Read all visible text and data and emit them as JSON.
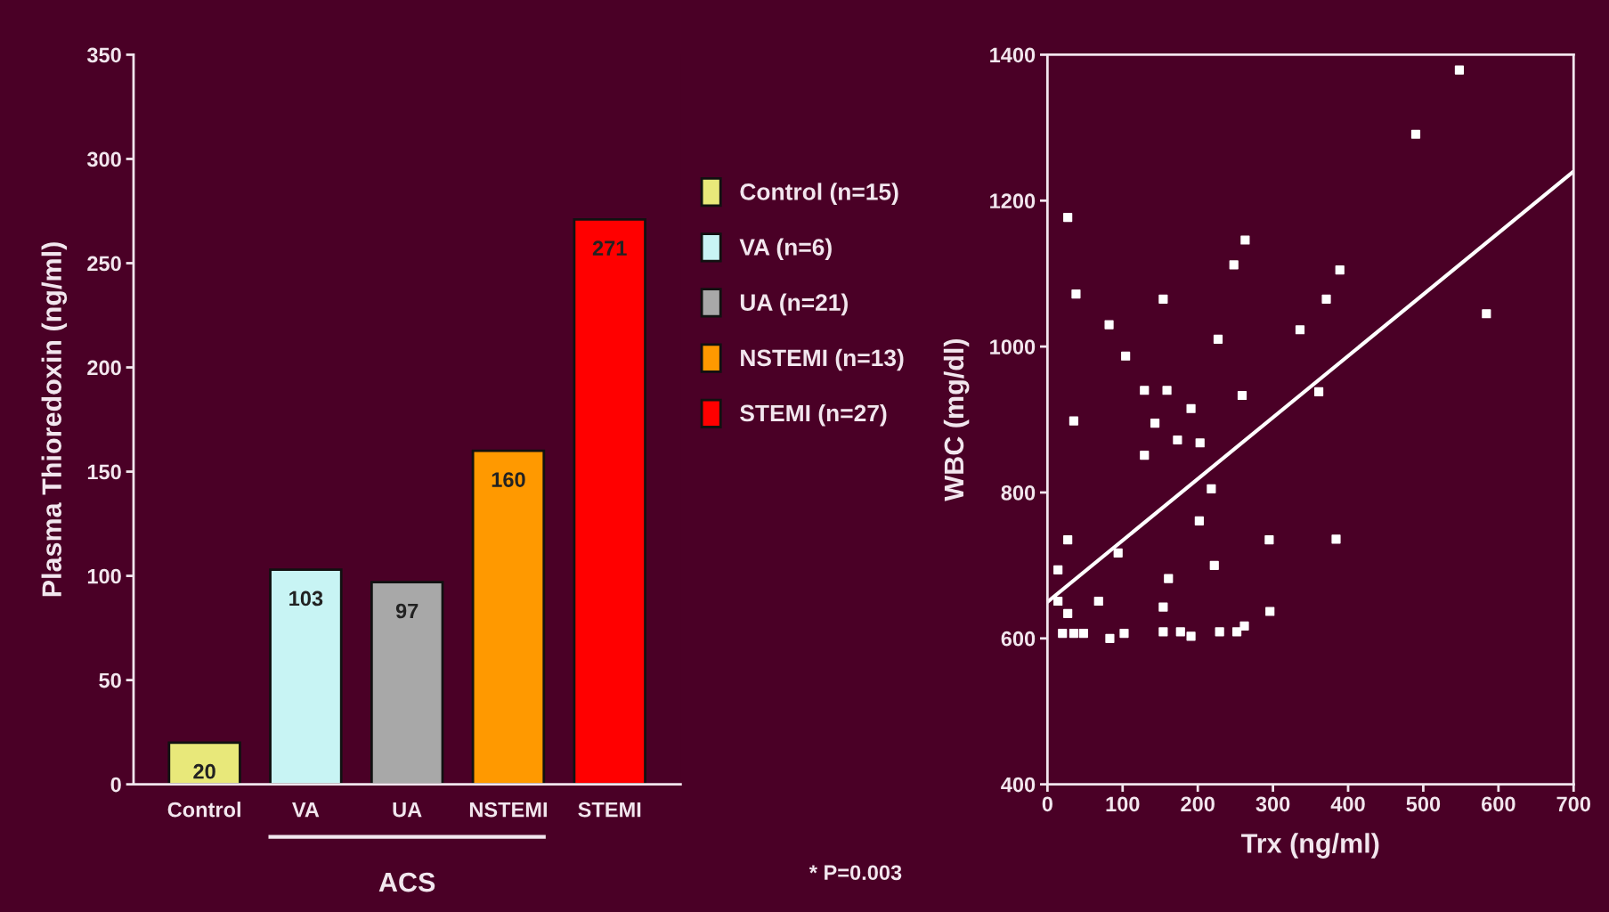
{
  "chart_data": [
    {
      "type": "bar",
      "ylabel": "Plasma Thioredoxin (ng/ml)",
      "categories": [
        "Control",
        "VA",
        "UA",
        "NSTEMI",
        "STEMI"
      ],
      "series": [
        {
          "name": "Control (n=15)",
          "color": "#e8e87a",
          "values": [
            20,
            null,
            null,
            null,
            null
          ]
        },
        {
          "name": "VA (n=6)",
          "color": "#c8f4f4",
          "values": [
            null,
            103,
            null,
            null,
            null
          ]
        },
        {
          "name": "UA (n=21)",
          "color": "#a8a8a8",
          "values": [
            null,
            null,
            97,
            null,
            null
          ]
        },
        {
          "name": "NSTEMI (n=13)",
          "color": "#ff9900",
          "values": [
            null,
            null,
            null,
            160,
            null
          ]
        },
        {
          "name": "STEMI (n=27)",
          "color": "#ff0000",
          "values": [
            null,
            null,
            null,
            null,
            271
          ]
        }
      ],
      "data_labels": true,
      "ylim": [
        0,
        350
      ],
      "yticks": [
        0,
        50,
        100,
        150,
        200,
        250,
        300,
        350
      ],
      "grid": false,
      "legend": "right",
      "annotations": [
        "ACS",
        "* P=0.003"
      ]
    },
    {
      "type": "scatter",
      "xlabel": "Trx (ng/ml)",
      "ylabel": "WBC (mg/dl)",
      "xlim": [
        0,
        700
      ],
      "ylim": [
        400,
        1400
      ],
      "xticks": [
        0,
        100,
        200,
        300,
        400,
        500,
        600,
        700
      ],
      "yticks": [
        400,
        600,
        800,
        1000,
        1200,
        1400
      ],
      "grid": false,
      "legend": false,
      "series": [
        {
          "color": "#ffffff",
          "marker": "square",
          "x": [
            490,
            548,
            584,
            27,
            38,
            35,
            263,
            248,
            389,
            371,
            154,
            82,
            104,
            227,
            336,
            129,
            159,
            143,
            191,
            259,
            361,
            129,
            173,
            203,
            218,
            202,
            27,
            94,
            295,
            384,
            14,
            222,
            161,
            68,
            14,
            27,
            154,
            296,
            20,
            35,
            48,
            83,
            102,
            154,
            177,
            191,
            229,
            252,
            262
          ],
          "values": [
            1291,
            1379,
            1045,
            1177,
            1072,
            898,
            1146,
            1112,
            1105,
            1065,
            1065,
            1030,
            987,
            1010,
            1023,
            940,
            940,
            895,
            915,
            933,
            938,
            851,
            872,
            868,
            805,
            761,
            735,
            717,
            735,
            736,
            694,
            700,
            682,
            651,
            651,
            634,
            643,
            637,
            607,
            607,
            607,
            600,
            607,
            609,
            609,
            603,
            609,
            609,
            617
          ]
        },
        {
          "type": "line",
          "color": "#ffffff",
          "line_style": "solid",
          "marker": "none",
          "x": [
            0,
            700
          ],
          "values": [
            650,
            1240
          ]
        }
      ]
    }
  ]
}
